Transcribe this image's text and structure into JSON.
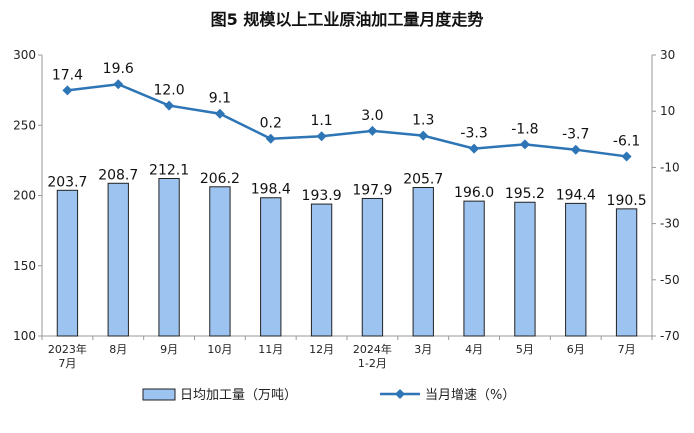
{
  "chart_data": {
    "type": "bar",
    "title": "图5  规模以上工业原油加工量月度走势",
    "categories": [
      [
        "2023年",
        "7月"
      ],
      [
        "8月"
      ],
      [
        "9月"
      ],
      [
        "10月"
      ],
      [
        "11月"
      ],
      [
        "12月"
      ],
      [
        "2024年",
        "1-2月"
      ],
      [
        "3月"
      ],
      [
        "4月"
      ],
      [
        "5月"
      ],
      [
        "6月"
      ],
      [
        "7月"
      ]
    ],
    "series": [
      {
        "name": "日均加工量（万吨）",
        "type": "bar",
        "axis": "left",
        "color": "#9DC3F0",
        "values": [
          203.7,
          208.7,
          212.1,
          206.2,
          198.4,
          193.9,
          197.9,
          205.7,
          196.0,
          195.2,
          194.4,
          190.5
        ],
        "labels": [
          "203.7",
          "208.7",
          "212.1",
          "206.2",
          "198.4",
          "193.9",
          "197.9",
          "205.7",
          "196.0",
          "195.2",
          "194.4",
          "190.5"
        ]
      },
      {
        "name": "当月增速（%）",
        "type": "line",
        "axis": "right",
        "color": "#2E75B6",
        "values": [
          17.4,
          19.6,
          12.0,
          9.1,
          0.2,
          1.1,
          3.0,
          1.3,
          -3.3,
          -1.8,
          -3.7,
          -6.1
        ],
        "labels": [
          "17.4",
          "19.6",
          "12.0",
          "9.1",
          "0.2",
          "1.1",
          "3.0",
          "1.3",
          "-3.3",
          "-1.8",
          "-3.7",
          "-6.1"
        ]
      }
    ],
    "y_left": {
      "min": 100,
      "max": 300,
      "ticks": [
        "100",
        "150",
        "200",
        "250",
        "300"
      ]
    },
    "y_right": {
      "min": -70,
      "max": 30,
      "ticks": [
        "-70",
        "-50",
        "-30",
        "-10",
        "10",
        "30"
      ]
    },
    "legend_position": "bottom",
    "grid": false
  }
}
